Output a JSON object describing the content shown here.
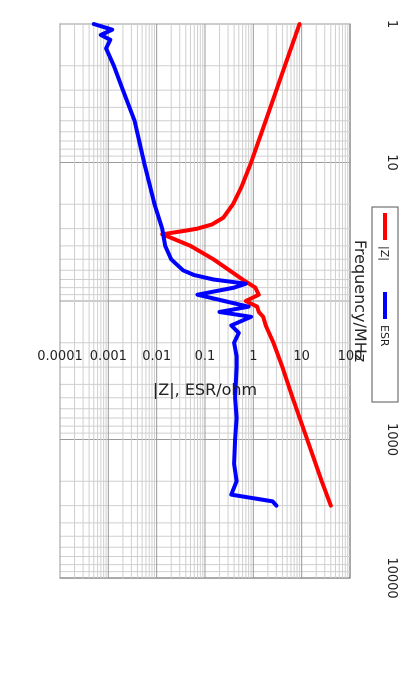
{
  "chart_data": {
    "type": "line",
    "title": "",
    "xlabel": "Frequency/MHz",
    "ylabel": "|Z|, ESR/ohm",
    "x_scale": "log",
    "y_scale": "log",
    "xlim": [
      1,
      10000
    ],
    "ylim": [
      0.0001,
      100
    ],
    "x_ticks": [
      "1",
      "10",
      "100",
      "1000",
      "10000"
    ],
    "y_ticks": [
      "100",
      "10",
      "1",
      "0.1",
      "0.01",
      "0.001",
      "0.0001"
    ],
    "grid": true,
    "legend": "bottom",
    "series": [
      {
        "name": "|Z|",
        "color": "#ff0000",
        "x": [
          1,
          2,
          5,
          10,
          15,
          20,
          25,
          28,
          30,
          31,
          33,
          35,
          40,
          50,
          60,
          70,
          80,
          90,
          100,
          110,
          120,
          130,
          150,
          200,
          300,
          500,
          1000,
          2000,
          3000
        ],
        "y": [
          9,
          4.5,
          1.8,
          0.9,
          0.57,
          0.38,
          0.24,
          0.14,
          0.07,
          0.04,
          0.013,
          0.02,
          0.05,
          0.15,
          0.32,
          0.6,
          1.1,
          1.3,
          0.7,
          1.2,
          1.3,
          1.6,
          1.8,
          2.6,
          4,
          6.5,
          13,
          26,
          40
        ]
      },
      {
        "name": "ESR",
        "color": "#0000ff",
        "x": [
          1,
          1.1,
          1.2,
          1.3,
          1.5,
          2,
          3,
          5,
          10,
          20,
          30,
          40,
          50,
          60,
          65,
          70,
          75,
          80,
          90,
          100,
          110,
          120,
          130,
          150,
          170,
          200,
          250,
          300,
          500,
          700,
          1000,
          1500,
          2000,
          2500,
          2800,
          3000
        ],
        "y": [
          0.0005,
          0.0012,
          0.0007,
          0.0011,
          0.0009,
          0.0013,
          0.002,
          0.0035,
          0.0055,
          0.009,
          0.013,
          0.015,
          0.02,
          0.035,
          0.06,
          0.15,
          0.7,
          0.4,
          0.07,
          0.25,
          0.8,
          0.2,
          0.9,
          0.35,
          0.5,
          0.4,
          0.45,
          0.45,
          0.42,
          0.45,
          0.42,
          0.4,
          0.45,
          0.35,
          2.5,
          3
        ]
      }
    ]
  }
}
